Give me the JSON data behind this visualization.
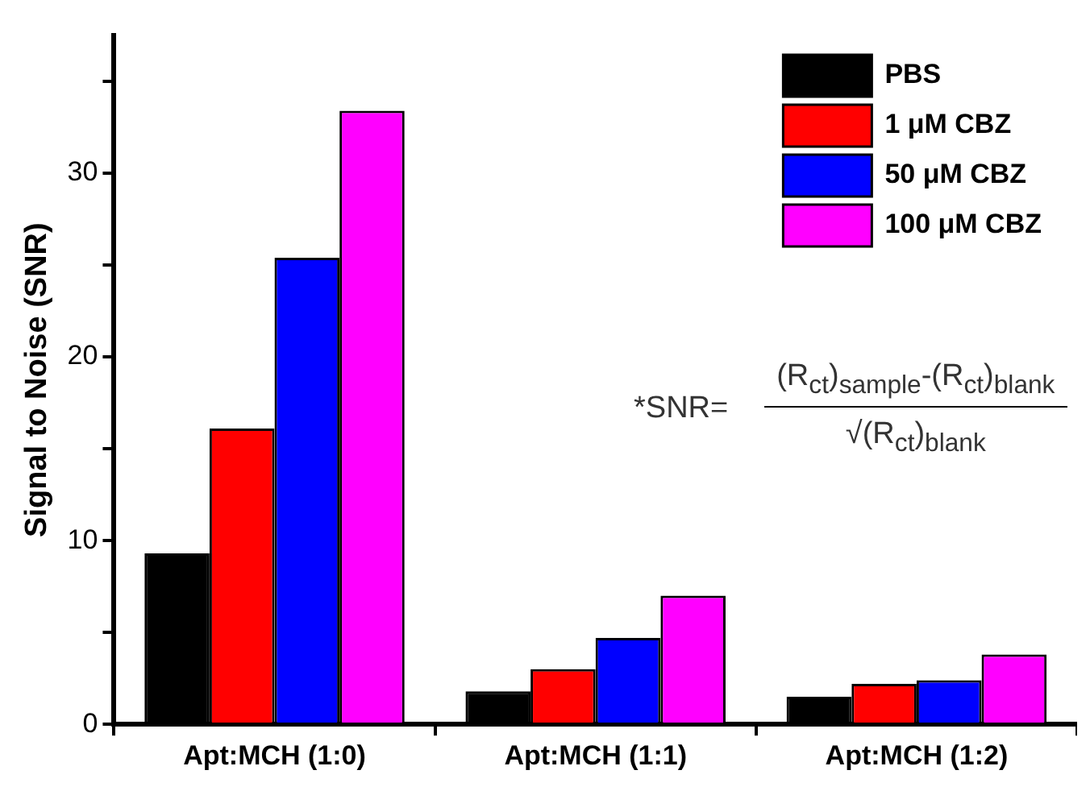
{
  "chart_data": {
    "type": "bar",
    "ylabel": "Signal to Noise (SNR)",
    "categories": [
      "Apt:MCH (1:0)",
      "Apt:MCH (1:1)",
      "Apt:MCH (1:2)"
    ],
    "series": [
      {
        "name": "PBS",
        "color": "#000000",
        "values": [
          9.3,
          1.8,
          1.5
        ]
      },
      {
        "name": "1 μM CBZ",
        "color": "#ff0000",
        "values": [
          16.1,
          3.0,
          2.2
        ]
      },
      {
        "name": "50 μM CBZ",
        "color": "#0000ff",
        "values": [
          25.4,
          4.7,
          2.4
        ]
      },
      {
        "name": "100 μM CBZ",
        "color": "#ff00ff",
        "values": [
          33.4,
          7.0,
          3.8
        ]
      }
    ],
    "ylim": [
      0,
      37.5
    ],
    "yticks": [
      0,
      {
        "value": 5,
        "label": null
      },
      10,
      {
        "value": 15,
        "label": null
      },
      20,
      {
        "value": 25,
        "label": null
      },
      30,
      {
        "value": 35,
        "label": null
      }
    ],
    "grid": false,
    "legend": "top right",
    "annotations": [
      "*SNR=",
      "(R$_{ct}$)$_{sample}$-(R$_{ct}$)$_{blank}$",
      "√(R$_{ct}$)$_{blank}$"
    ]
  }
}
